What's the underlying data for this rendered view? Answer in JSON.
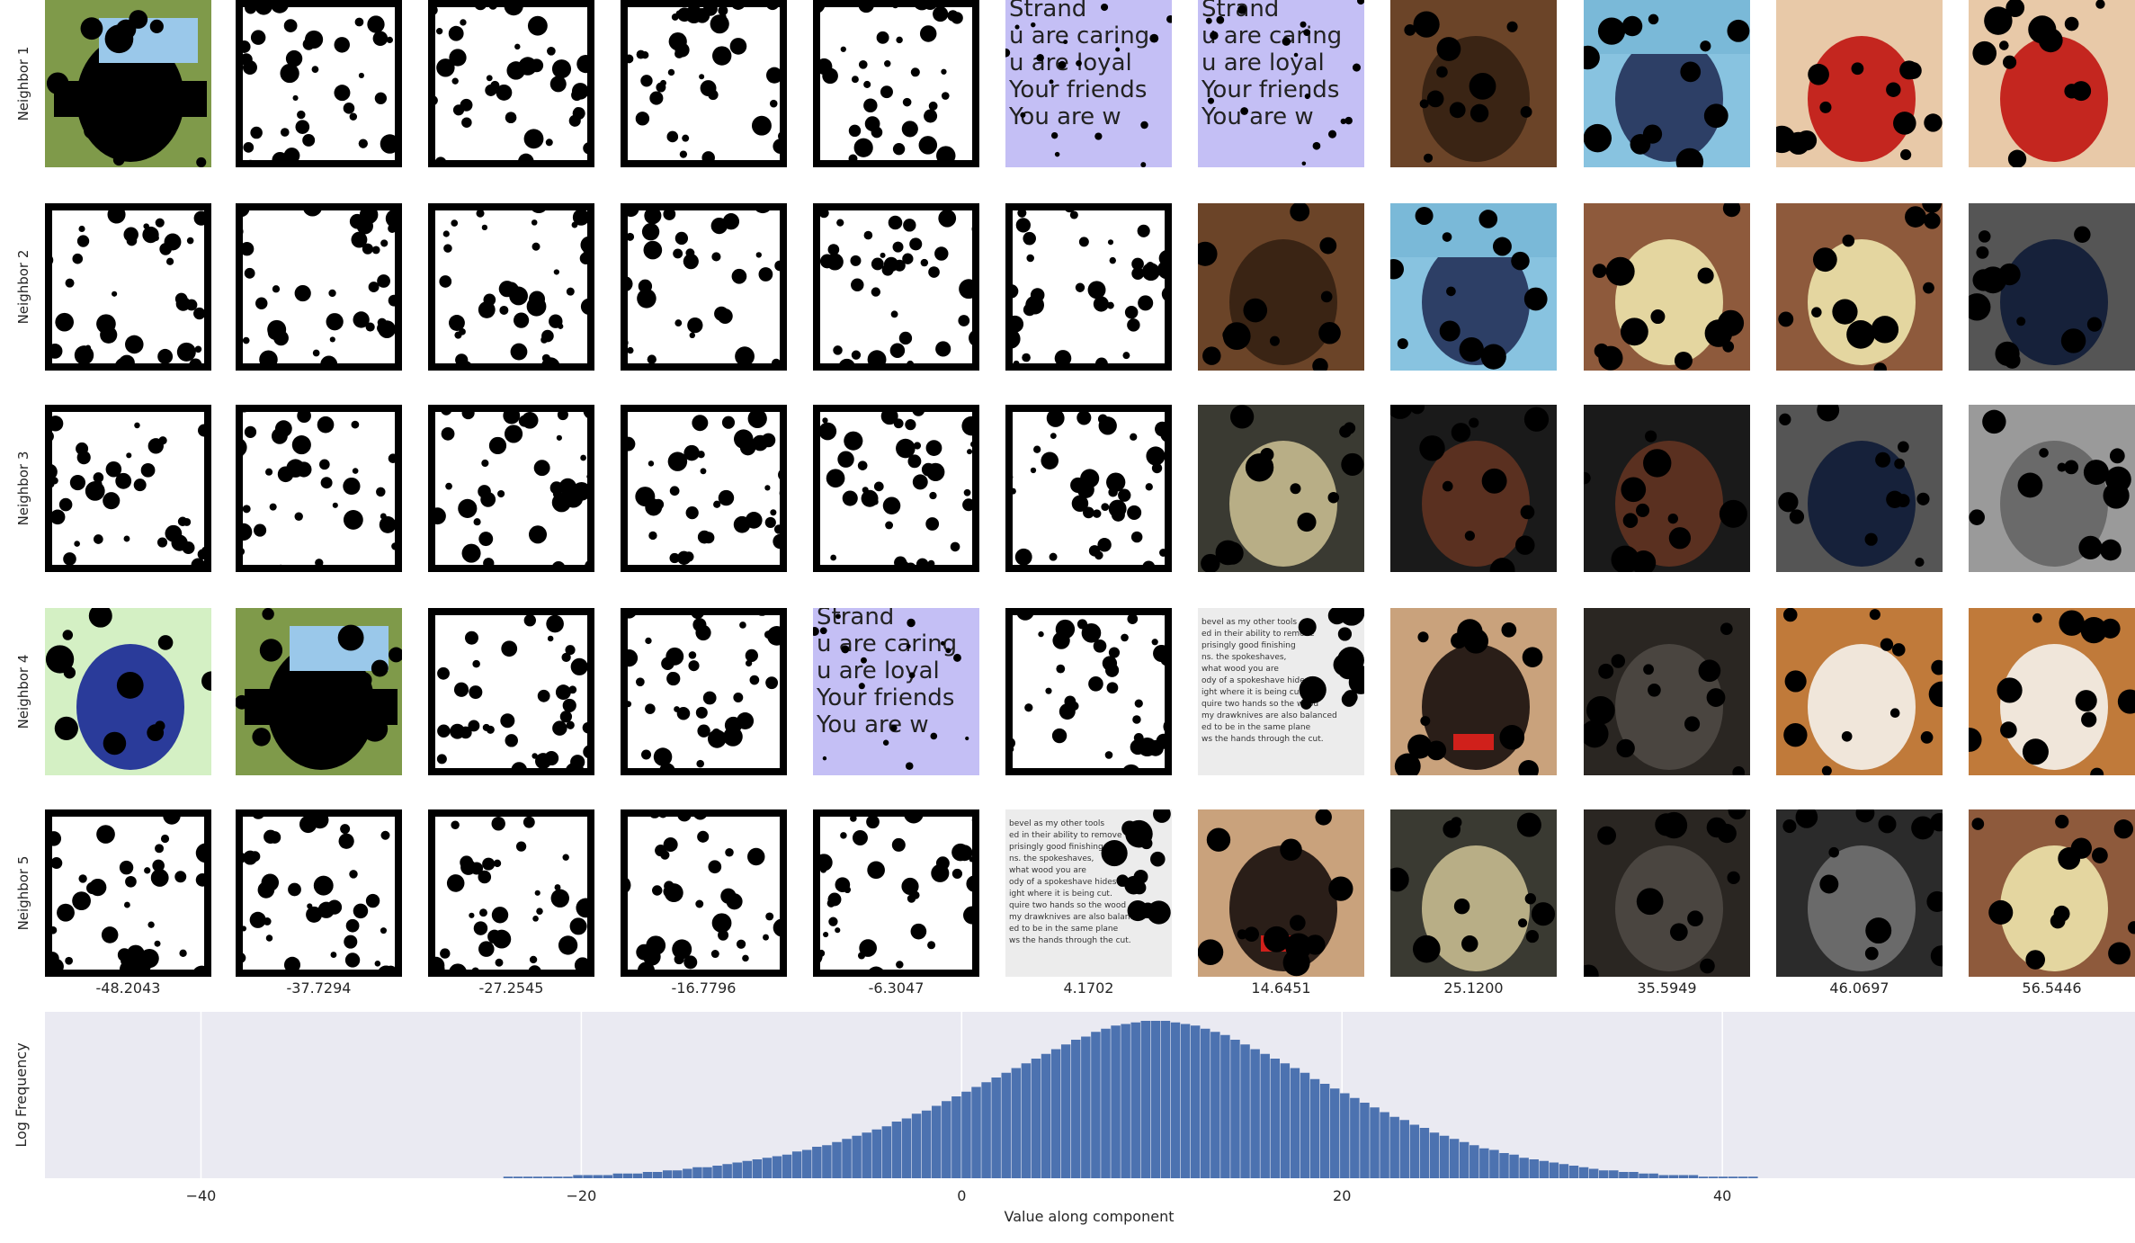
{
  "rows": [
    "Neighbor 1",
    "Neighbor 2",
    "Neighbor 3",
    "Neighbor 4",
    "Neighbor 5"
  ],
  "columns": [
    "-48.2043",
    "-37.7294",
    "-27.2545",
    "-16.7796",
    "-6.3047",
    "4.1702",
    "14.6451",
    "25.1200",
    "35.5949",
    "46.0697",
    "56.5446"
  ],
  "tiles": [
    [
      "photo-sky-landscape",
      "mask",
      "mask",
      "mask",
      "mask",
      "text-image-lavender",
      "text-image-lavender",
      "photo-brown-blur",
      "photo-guitarist-blue",
      "photo-clarinet-red",
      "photo-clarinet-red"
    ],
    [
      "mask",
      "mask",
      "mask",
      "mask",
      "mask",
      "mask",
      "photo-brown-blur",
      "photo-guitarist-blue",
      "photo-saxophone-brick",
      "photo-saxophone-brick",
      "photo-saxophone-dark"
    ],
    [
      "mask",
      "mask",
      "mask",
      "mask",
      "mask",
      "mask",
      "photo-shark-model",
      "photo-guitar-dark",
      "photo-guitar-dark",
      "photo-saxophone-dark",
      "photo-grayscale-guitarist"
    ],
    [
      "photo-blue-object-green",
      "photo-sky-landscape",
      "mask",
      "mask",
      "text-image-lavender",
      "mask",
      "text-image-gray",
      "photo-boy-bowtie",
      "photo-guitarist-dark",
      "photo-clarinet-orange",
      "photo-clarinet-orange"
    ],
    [
      "mask",
      "mask",
      "mask",
      "mask",
      "mask",
      "text-image-gray",
      "photo-boy-bowtie",
      "photo-shark-model",
      "photo-guitarist-dark",
      "photo-dark-figure",
      "photo-saxophone-brick"
    ]
  ],
  "chart_data": {
    "type": "bar",
    "title": "",
    "xlabel": "Value along component",
    "ylabel": "Log Frequency",
    "xlim": [
      -48.2043,
      61.7
    ],
    "xticks": [
      -40,
      -20,
      0,
      20,
      40
    ],
    "grid": true,
    "bar_color": "#4c72b0",
    "background": "#eaeaf2",
    "bins": {
      "start": -48.2043,
      "width": 0.52375,
      "counts_log_relative": [
        0.0,
        0.0,
        0.0,
        0.0,
        0.0,
        0.0,
        0.0,
        0.0,
        0.0,
        0.0,
        0.0,
        0.0,
        0.0,
        0.0,
        0.0,
        0.0,
        0.0,
        0.0,
        0.0,
        0.0,
        0.0,
        0.0,
        0.0,
        0.0,
        0.0,
        0.0,
        0.0,
        0.0,
        0.0,
        0.0,
        0.0,
        0.0,
        0.0,
        0.0,
        0.0,
        0.0,
        0.0,
        0.0,
        0.0,
        0.0,
        0.0,
        0.0,
        0.0,
        0.0,
        0.0,
        0.0,
        0.01,
        0.01,
        0.01,
        0.01,
        0.01,
        0.01,
        0.01,
        0.02,
        0.02,
        0.02,
        0.02,
        0.03,
        0.03,
        0.03,
        0.04,
        0.04,
        0.05,
        0.05,
        0.06,
        0.07,
        0.07,
        0.08,
        0.09,
        0.1,
        0.11,
        0.12,
        0.13,
        0.14,
        0.15,
        0.17,
        0.18,
        0.2,
        0.21,
        0.23,
        0.25,
        0.27,
        0.29,
        0.31,
        0.33,
        0.36,
        0.38,
        0.41,
        0.43,
        0.46,
        0.49,
        0.52,
        0.55,
        0.58,
        0.61,
        0.64,
        0.67,
        0.7,
        0.73,
        0.76,
        0.79,
        0.82,
        0.85,
        0.88,
        0.9,
        0.93,
        0.95,
        0.97,
        0.98,
        0.99,
        1.0,
        1.0,
        1.0,
        0.99,
        0.98,
        0.97,
        0.95,
        0.93,
        0.91,
        0.88,
        0.85,
        0.82,
        0.79,
        0.76,
        0.73,
        0.7,
        0.67,
        0.63,
        0.6,
        0.57,
        0.54,
        0.51,
        0.48,
        0.45,
        0.42,
        0.39,
        0.37,
        0.34,
        0.32,
        0.29,
        0.27,
        0.25,
        0.23,
        0.21,
        0.19,
        0.18,
        0.16,
        0.15,
        0.13,
        0.12,
        0.11,
        0.1,
        0.09,
        0.08,
        0.07,
        0.06,
        0.05,
        0.05,
        0.04,
        0.04,
        0.03,
        0.03,
        0.02,
        0.02,
        0.02,
        0.02,
        0.01,
        0.01,
        0.01,
        0.01,
        0.01,
        0.01,
        0.0,
        0.0,
        0.0,
        0.0,
        0.0,
        0.0,
        0.0,
        0.0,
        0.0,
        0.0,
        0.0,
        0.0,
        0.0,
        0.0,
        0.0,
        0.0,
        0.0,
        0.0,
        0.0,
        0.0,
        0.0,
        0.0,
        0.0,
        0.0,
        0.0,
        0.0,
        0.0,
        0.0,
        0.0,
        0.0,
        0.0,
        0.0,
        0.0,
        0.0,
        0.0,
        0.0,
        0.0,
        0.0,
        0.0,
        0.0,
        0.0,
        0.0,
        0.0,
        0.0,
        0.0,
        0.0,
        0.0
      ]
    }
  },
  "colors": {
    "mask_black": "#000000",
    "mask_white": "#ffffff",
    "lavender": "#c4bff5",
    "text_gray": "#d6d6d6",
    "photo_brown": "#6b4428",
    "photo_blue": "#2d3f66",
    "photo_red": "#c4261f",
    "photo_dark": "#1a1a1a",
    "photo_brick": "#8e5a3c",
    "photo_orange": "#c07a3a",
    "photo_skin": "#c9a27c",
    "photo_gray": "#6a6a6a"
  }
}
